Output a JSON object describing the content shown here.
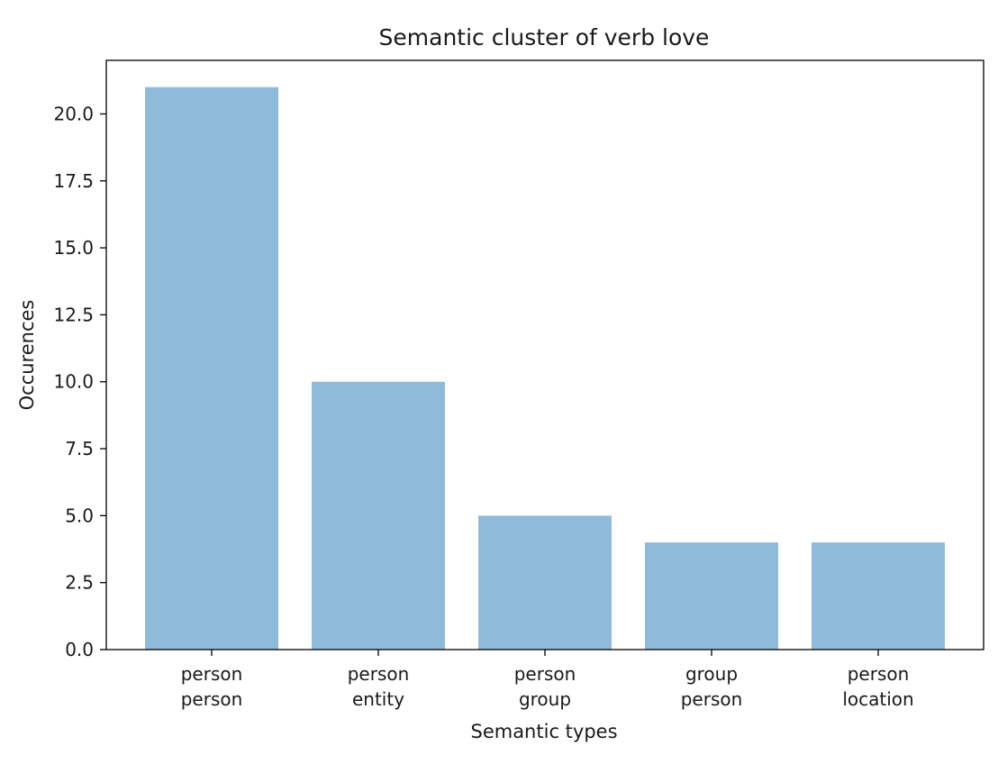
{
  "chart_data": {
    "type": "bar",
    "title": "Semantic cluster of verb love",
    "xlabel": "Semantic types",
    "ylabel": "Occurences",
    "categories": [
      [
        "person",
        "person"
      ],
      [
        "person",
        "entity"
      ],
      [
        "person",
        "group"
      ],
      [
        "group",
        "person"
      ],
      [
        "person",
        "location"
      ]
    ],
    "values": [
      21,
      10,
      5,
      4,
      4
    ],
    "ylim": [
      0,
      22
    ],
    "yticks": [
      "0.0",
      "2.5",
      "5.0",
      "7.5",
      "10.0",
      "12.5",
      "15.0",
      "17.5",
      "20.0"
    ],
    "bar_color": "#8fbad9",
    "grid": false,
    "legend": "none"
  }
}
